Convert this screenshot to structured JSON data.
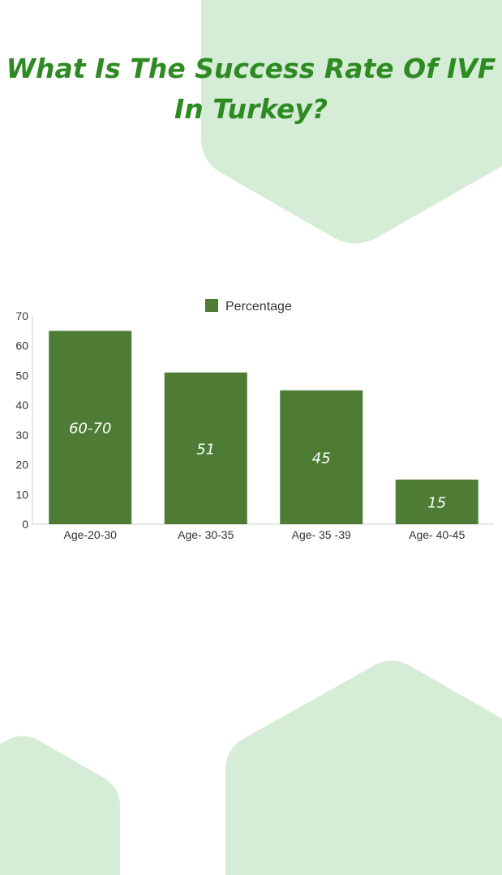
{
  "colors": {
    "title": "#2e8b22",
    "bar": "#4e7c35",
    "background_shape": "#d5ecd6"
  },
  "title_line1": "What Is The Success Rate Of IVF",
  "title_line2": "In Turkey?",
  "chart_data": {
    "type": "bar",
    "title": "What Is The Success Rate Of IVF In Turkey?",
    "categories": [
      "Age-20-30",
      "Age- 30-35",
      "Age- 35 -39",
      "Age- 40-45"
    ],
    "series": [
      {
        "name": "Percentage",
        "values": [
          65,
          51,
          45,
          15
        ],
        "data_labels": [
          "60-70",
          "51",
          "45",
          "15"
        ]
      }
    ],
    "xlabel": "",
    "ylabel": "",
    "ylim": [
      0,
      70
    ],
    "yticks": [
      0,
      10,
      20,
      30,
      40,
      50,
      60,
      70
    ],
    "grid": false,
    "legend_position": "top-center"
  }
}
